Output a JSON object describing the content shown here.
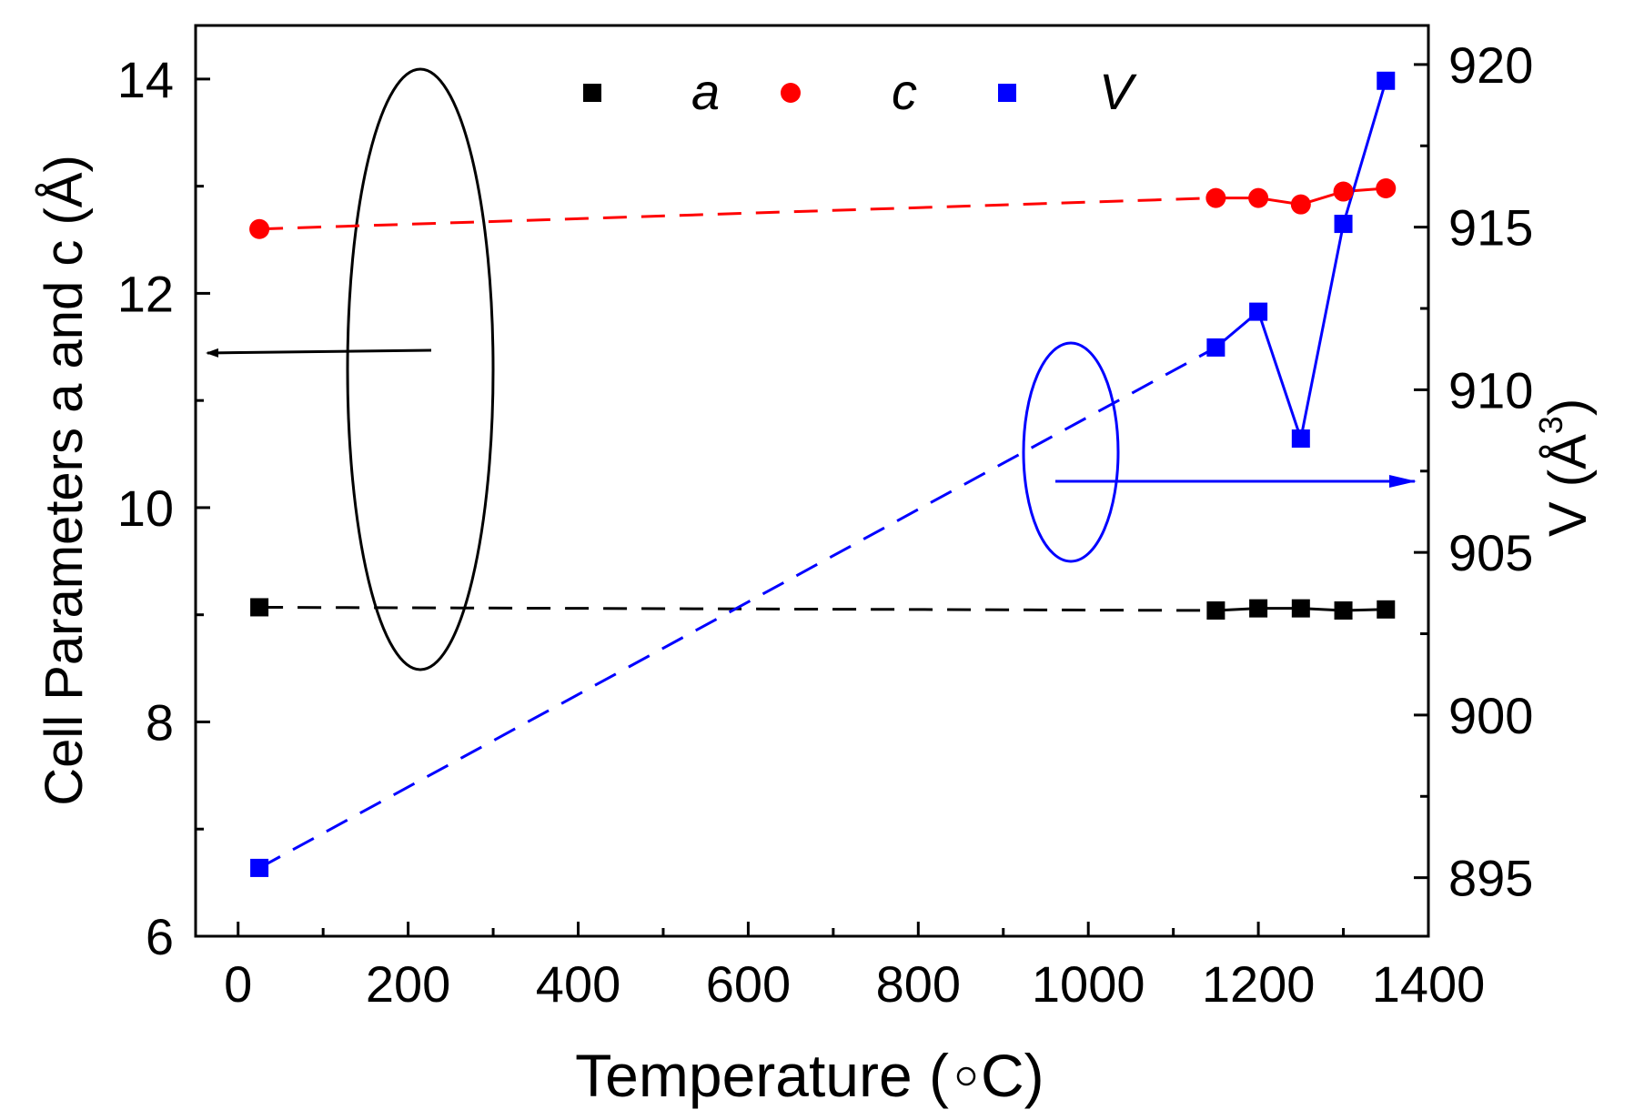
{
  "chart_data": {
    "type": "scatter",
    "xlabel_main": "Temperature (",
    "xlabel_unit": "C)",
    "ylabel_left": "Cell Parameters a and c (Å)",
    "ylabel_right_prefix": "V (Å",
    "ylabel_right_exp": "3",
    "ylabel_right_suffix": ")",
    "xlim": [
      -50,
      1400
    ],
    "ylim_left": [
      6,
      14.5
    ],
    "ylim_right": [
      893.2,
      921.2
    ],
    "x_ticks": [
      0,
      200,
      400,
      600,
      800,
      1000,
      1200,
      1400
    ],
    "x_tick_labels": [
      "0",
      "200",
      "400",
      "600",
      "800",
      "1000",
      "1200",
      "1400"
    ],
    "y_left_ticks": [
      6,
      8,
      10,
      12,
      14
    ],
    "y_left_tick_labels": [
      "6",
      "8",
      "10",
      "12",
      "14"
    ],
    "y_right_ticks": [
      895,
      900,
      905,
      910,
      915,
      920
    ],
    "y_right_tick_labels": [
      "895",
      "900",
      "905",
      "910",
      "915",
      "920"
    ],
    "series": [
      {
        "name": "a",
        "axis": "left",
        "color": "#000000",
        "marker": "square",
        "x": [
          25,
          1150,
          1200,
          1250,
          1300,
          1350
        ],
        "y": [
          9.07,
          9.04,
          9.06,
          9.06,
          9.04,
          9.05
        ]
      },
      {
        "name": "c",
        "axis": "left",
        "color": "#ff0000",
        "marker": "circle",
        "x": [
          25,
          1150,
          1200,
          1250,
          1300,
          1350
        ],
        "y": [
          12.6,
          12.89,
          12.89,
          12.83,
          12.95,
          12.98
        ]
      },
      {
        "name": "V",
        "axis": "right",
        "color": "#0000ff",
        "marker": "square",
        "x": [
          25,
          1150,
          1200,
          1250,
          1300,
          1350
        ],
        "y": [
          895.3,
          911.3,
          912.4,
          908.5,
          915.1,
          919.5
        ]
      }
    ],
    "legend": [
      "a",
      "c",
      "V"
    ],
    "legend_position": "top-center",
    "annotations": {
      "left_ellipse_color": "#000000",
      "right_ellipse_color": "#0000ff",
      "left_arrow_points_to": "left axis",
      "right_arrow_points_to": "right axis"
    }
  }
}
